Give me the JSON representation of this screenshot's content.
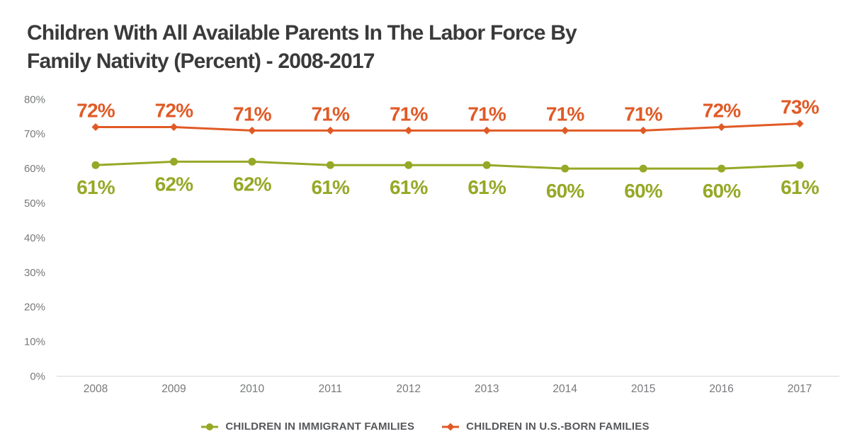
{
  "title": {
    "line1": "Children With All Available Parents In The Labor Force By",
    "line2": "Family Nativity (Percent) - 2008-2017"
  },
  "colors": {
    "title": "#3A3A3A",
    "axis_label": "#77787A",
    "baseline": "#DFE2E7",
    "legend_text": "#57585B",
    "immigrant_green": "#96A826",
    "usborn_orange": "#E05A26"
  },
  "chart_data": {
    "type": "line",
    "title": "Children With All Available Parents In The Labor Force By Family Nativity (Percent) - 2008-2017",
    "x": [
      "2008",
      "2009",
      "2010",
      "2011",
      "2012",
      "2013",
      "2014",
      "2015",
      "2016",
      "2017"
    ],
    "xlabel": "",
    "ylabel": "",
    "ylim": [
      0,
      80
    ],
    "yticks": [
      "0%",
      "10%",
      "20%",
      "30%",
      "40%",
      "50%",
      "60%",
      "70%",
      "80%"
    ],
    "grid": false,
    "legend_position": "bottom",
    "series": [
      {
        "name": "CHILDREN IN IMMIGRANT FAMILIES",
        "color": "#96A826",
        "marker": "circle",
        "label_position": "below",
        "values": [
          61,
          62,
          62,
          61,
          61,
          61,
          60,
          60,
          60,
          61
        ],
        "labels": [
          "61%",
          "62%",
          "62%",
          "61%",
          "61%",
          "61%",
          "60%",
          "60%",
          "60%",
          "61%"
        ]
      },
      {
        "name": "CHILDREN IN U.S.-BORN FAMILIES",
        "color": "#E05A26",
        "marker": "diamond",
        "label_position": "above",
        "values": [
          72,
          72,
          71,
          71,
          71,
          71,
          71,
          71,
          72,
          73
        ],
        "labels": [
          "72%",
          "72%",
          "71%",
          "71%",
          "71%",
          "71%",
          "71%",
          "71%",
          "72%",
          "73%"
        ]
      }
    ]
  }
}
